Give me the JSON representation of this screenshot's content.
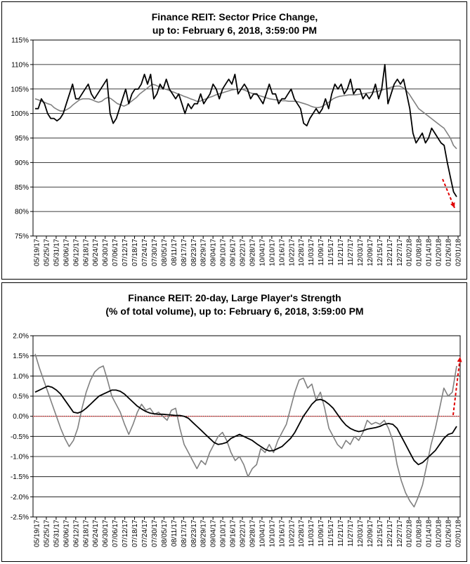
{
  "charts": [
    {
      "title_line1": "Finance REIT: Sector Price Change,",
      "title_line2": "up to: February 6, 2018, 3:59:00 PM"
    },
    {
      "title_line1": "Finance REIT: 20-day, Large Player's Strength",
      "title_line2": "(% of total volume), up to: February 6, 2018, 3:59:00 PM"
    }
  ],
  "chart_data": [
    {
      "type": "line",
      "title": "Finance REIT: Sector Price Change, up to: February 6, 2018, 3:59:00 PM",
      "xlabel": "",
      "ylabel": "",
      "ylim": [
        75,
        115
      ],
      "y_ticks": [
        "75%",
        "80%",
        "85%",
        "90%",
        "95%",
        "100%",
        "105%",
        "110%",
        "115%"
      ],
      "grid": true,
      "x_tick_labels": [
        "05/19/17",
        "05/25/17",
        "05/31/17",
        "06/06/17",
        "06/12/17",
        "06/18/17",
        "06/24/17",
        "06/30/17",
        "07/06/17",
        "07/12/17",
        "07/18/17",
        "07/24/17",
        "07/30/17",
        "08/05/17",
        "08/11/17",
        "08/17/17",
        "08/23/17",
        "08/29/17",
        "09/04/17",
        "09/10/17",
        "09/16/17",
        "09/22/17",
        "09/28/17",
        "10/04/17",
        "10/10/17",
        "10/16/17",
        "10/22/17",
        "10/28/17",
        "11/03/17",
        "11/09/17",
        "11/15/17",
        "11/21/17",
        "11/27/17",
        "12/03/17",
        "12/09/17",
        "12/15/17",
        "12/21/17",
        "12/27/17",
        "01/02/18",
        "01/08/18",
        "01/14/18",
        "01/20/18",
        "01/26/18",
        "02/01/18"
      ],
      "series": [
        {
          "color": "#000000",
          "values": [
            101,
            101,
            103,
            102,
            100,
            99,
            99,
            98.5,
            99,
            100,
            102,
            104,
            106,
            103,
            103,
            104,
            105,
            106,
            104,
            103,
            104,
            105,
            106,
            107,
            100,
            98,
            99,
            101,
            103,
            105,
            102,
            104,
            105,
            105,
            106,
            108,
            106,
            108,
            103,
            104,
            106,
            105,
            107,
            105,
            104,
            103,
            104,
            102,
            100,
            102,
            101,
            102,
            102,
            104,
            102,
            103,
            104,
            106,
            105,
            103,
            105,
            106,
            107,
            106,
            108,
            104,
            105,
            106,
            105,
            103,
            104,
            104,
            103,
            102,
            104,
            106,
            104,
            104,
            102,
            103,
            103,
            104,
            105,
            103,
            102,
            101,
            98,
            97.5,
            99,
            100,
            101,
            100,
            101,
            103,
            101,
            104,
            106,
            105,
            106,
            104,
            105,
            107,
            104,
            105,
            105,
            103,
            104,
            103,
            104,
            106,
            103,
            105,
            110,
            102,
            104,
            106,
            107,
            106,
            107,
            104,
            101,
            96,
            94,
            95,
            96,
            94,
            95,
            97,
            96,
            95,
            94,
            93.5,
            90,
            87,
            84,
            83
          ]
        },
        {
          "color": "#808080",
          "values": [
            103,
            102.8,
            102.5,
            102.3,
            102,
            101.8,
            101.2,
            100.8,
            100.5,
            100.5,
            100.8,
            101.2,
            101.8,
            102.3,
            102.8,
            103,
            103,
            103,
            102.8,
            102.5,
            102.3,
            102.5,
            103,
            103.3,
            103,
            102.5,
            102,
            101.8,
            101.5,
            101.8,
            102.3,
            102.8,
            103.3,
            104,
            104.5,
            105,
            105.5,
            106,
            105.8,
            105.5,
            105.3,
            105,
            104.8,
            104.5,
            104.3,
            104,
            103.8,
            103.5,
            103.3,
            103,
            102.8,
            102.5,
            102.5,
            102.8,
            103,
            103.3,
            103.5,
            103.8,
            104,
            104.2,
            104.4,
            104.6,
            104.8,
            104.9,
            105,
            105,
            104.8,
            104.5,
            104.2,
            104,
            103.8,
            103.6,
            103.4,
            103.2,
            103,
            102.9,
            102.8,
            102.7,
            102.6,
            102.6,
            102.5,
            102.5,
            102.5,
            102.4,
            102.2,
            102,
            101.8,
            101.5,
            101.3,
            101.2,
            101.3,
            101.6,
            102,
            102.5,
            103,
            103.3,
            103.5,
            103.6,
            103.7,
            103.8,
            103.8,
            103.8,
            103.9,
            104,
            104.1,
            104.2,
            104.3,
            104.4,
            104.5,
            104.7,
            104.9,
            105.1,
            105.3,
            105.5,
            105.6,
            105.6,
            105.3,
            104.8,
            104,
            103,
            102,
            101,
            100.5,
            100,
            99.5,
            99,
            98.5,
            98,
            97.5,
            97,
            96,
            95,
            93.5,
            92.8
          ]
        }
      ]
    },
    {
      "type": "line",
      "title": "Finance REIT: 20-day, Large Player's Strength (% of total volume), up to: February 6, 2018, 3:59:00 PM",
      "xlabel": "",
      "ylabel": "",
      "ylim": [
        -2.5,
        2.0
      ],
      "y_ticks": [
        "-2.5%",
        "-2.0%",
        "-1.5%",
        "-1.0%",
        "-0.5%",
        "0.0%",
        "0.5%",
        "1.0%",
        "1.5%",
        "2.0%"
      ],
      "grid": true,
      "zero_line_color": "#ff6666",
      "x_tick_labels": [
        "05/19/17",
        "05/25/17",
        "05/31/17",
        "06/06/17",
        "06/12/17",
        "06/18/17",
        "06/24/17",
        "06/30/17",
        "07/06/17",
        "07/12/17",
        "07/18/17",
        "07/24/17",
        "07/30/17",
        "08/05/17",
        "08/11/17",
        "08/17/17",
        "08/23/17",
        "08/29/17",
        "09/04/17",
        "09/10/17",
        "09/16/17",
        "09/22/17",
        "09/28/17",
        "10/04/17",
        "10/10/17",
        "10/16/17",
        "10/22/17",
        "10/28/17",
        "11/03/17",
        "11/09/17",
        "11/15/17",
        "11/21/17",
        "11/27/17",
        "12/03/17",
        "12/09/17",
        "12/15/17",
        "12/21/17",
        "12/27/17",
        "01/02/18",
        "01/08/18",
        "01/14/18",
        "01/20/18",
        "01/26/18",
        "02/01/18"
      ],
      "series": [
        {
          "color": "#000000",
          "values": [
            0.6,
            0.65,
            0.7,
            0.75,
            0.72,
            0.65,
            0.55,
            0.4,
            0.25,
            0.1,
            0.08,
            0.12,
            0.2,
            0.3,
            0.4,
            0.5,
            0.55,
            0.6,
            0.65,
            0.65,
            0.62,
            0.55,
            0.45,
            0.35,
            0.25,
            0.18,
            0.12,
            0.08,
            0.06,
            0.05,
            0.05,
            0.04,
            0.03,
            0.02,
            0.02,
            0.0,
            -0.05,
            -0.15,
            -0.25,
            -0.35,
            -0.45,
            -0.55,
            -0.65,
            -0.7,
            -0.68,
            -0.65,
            -0.55,
            -0.5,
            -0.45,
            -0.5,
            -0.55,
            -0.6,
            -0.68,
            -0.75,
            -0.82,
            -0.86,
            -0.85,
            -0.8,
            -0.75,
            -0.65,
            -0.55,
            -0.4,
            -0.2,
            0.0,
            0.15,
            0.3,
            0.4,
            0.42,
            0.38,
            0.3,
            0.2,
            0.05,
            -0.1,
            -0.22,
            -0.3,
            -0.35,
            -0.38,
            -0.36,
            -0.32,
            -0.3,
            -0.28,
            -0.25,
            -0.2,
            -0.18,
            -0.2,
            -0.3,
            -0.5,
            -0.7,
            -0.9,
            -1.1,
            -1.2,
            -1.15,
            -1.05,
            -0.95,
            -0.85,
            -0.7,
            -0.55,
            -0.45,
            -0.42,
            -0.25
          ]
        },
        {
          "color": "#808080",
          "values": [
            1.55,
            1.2,
            0.9,
            0.6,
            0.3,
            0.0,
            -0.3,
            -0.55,
            -0.75,
            -0.6,
            -0.3,
            0.2,
            0.6,
            0.9,
            1.1,
            1.2,
            1.25,
            0.9,
            0.5,
            0.3,
            0.1,
            -0.2,
            -0.45,
            -0.2,
            0.1,
            0.3,
            0.15,
            0.2,
            0.05,
            0.1,
            0.0,
            -0.1,
            0.15,
            0.2,
            -0.3,
            -0.7,
            -0.9,
            -1.1,
            -1.3,
            -1.1,
            -1.2,
            -0.9,
            -0.7,
            -0.5,
            -0.4,
            -0.6,
            -0.9,
            -1.1,
            -1.0,
            -1.2,
            -1.5,
            -1.3,
            -1.2,
            -0.8,
            -0.9,
            -0.7,
            -0.9,
            -0.6,
            -0.4,
            -0.2,
            0.2,
            0.6,
            0.9,
            0.95,
            0.7,
            0.8,
            0.4,
            0.6,
            0.2,
            -0.3,
            -0.5,
            -0.7,
            -0.8,
            -0.6,
            -0.7,
            -0.5,
            -0.6,
            -0.4,
            -0.1,
            -0.2,
            -0.15,
            -0.2,
            -0.1,
            -0.3,
            -0.6,
            -1.2,
            -1.6,
            -1.9,
            -2.1,
            -2.25,
            -2.0,
            -1.7,
            -1.2,
            -0.7,
            -0.3,
            0.2,
            0.7,
            0.5,
            0.6,
            1.25
          ]
        }
      ]
    }
  ]
}
